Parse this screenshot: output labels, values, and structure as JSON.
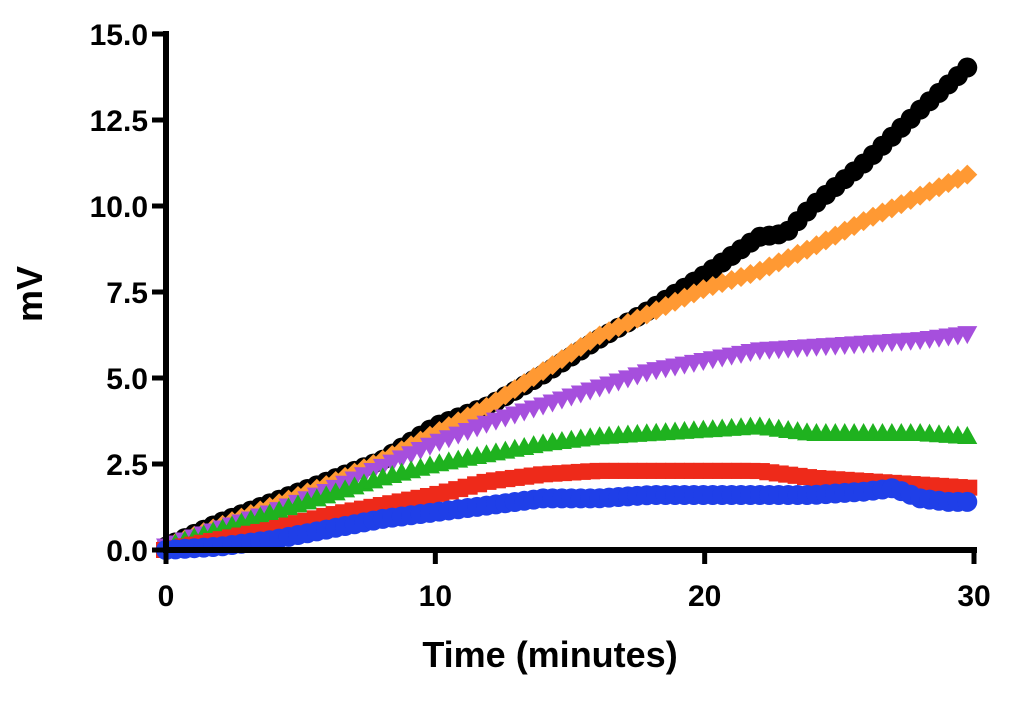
{
  "chart_data": {
    "type": "scatter",
    "title": "",
    "xlabel": "Time (minutes)",
    "ylabel": "mV",
    "xlim": [
      0,
      30
    ],
    "ylim": [
      0,
      15
    ],
    "x_ticks": [
      0,
      10,
      20,
      30
    ],
    "x_tick_labels": [
      "0",
      "10",
      "20",
      "30"
    ],
    "y_ticks": [
      0,
      2.5,
      5,
      7.5,
      10,
      12.5,
      15
    ],
    "y_tick_labels": [
      "0.0",
      "2.5",
      "5.0",
      "7.5",
      "10.0",
      "12.5",
      "15.0"
    ],
    "grid": false,
    "legend": "none",
    "series": [
      {
        "marker": "circle",
        "color": "#000000",
        "x": [
          0,
          2,
          4,
          6,
          8,
          10,
          12,
          14,
          16,
          18,
          20,
          22,
          23,
          24,
          26,
          28,
          30
        ],
        "y": [
          0.1,
          0.8,
          1.4,
          2.0,
          2.6,
          3.6,
          4.2,
          5.1,
          6.1,
          7.0,
          8.0,
          9.1,
          9.2,
          10.0,
          11.3,
          12.8,
          14.2
        ]
      },
      {
        "marker": "diamond",
        "color": "#ff9933",
        "x": [
          0,
          2,
          4,
          6,
          8,
          10,
          12,
          14,
          16,
          18,
          20,
          22,
          24,
          26,
          28,
          30
        ],
        "y": [
          0.1,
          0.7,
          1.3,
          1.9,
          2.6,
          3.4,
          4.2,
          5.2,
          6.2,
          6.9,
          7.6,
          8.1,
          8.8,
          9.6,
          10.3,
          11.0
        ]
      },
      {
        "marker": "triangle-down",
        "color": "#a64fdd",
        "x": [
          0,
          2,
          4,
          6,
          8,
          10,
          12,
          14,
          16,
          18,
          20,
          22,
          24,
          26,
          28,
          30
        ],
        "y": [
          0.1,
          0.6,
          1.1,
          1.7,
          2.4,
          3.1,
          3.7,
          4.2,
          4.7,
          5.2,
          5.5,
          5.8,
          5.9,
          6.0,
          6.1,
          6.3
        ]
      },
      {
        "marker": "triangle-up",
        "color": "#1fb21f",
        "x": [
          0,
          2,
          4,
          6,
          8,
          10,
          12,
          14,
          16,
          18,
          20,
          22,
          24,
          26,
          28,
          30
        ],
        "y": [
          0.1,
          0.6,
          1.1,
          1.6,
          2.1,
          2.5,
          2.8,
          3.1,
          3.3,
          3.4,
          3.5,
          3.6,
          3.4,
          3.4,
          3.4,
          3.3
        ]
      },
      {
        "marker": "square",
        "color": "#ee2a1a",
        "x": [
          0,
          2,
          4,
          6,
          8,
          10,
          12,
          14,
          16,
          18,
          20,
          22,
          24,
          26,
          28,
          30
        ],
        "y": [
          0.0,
          0.3,
          0.6,
          1.0,
          1.3,
          1.6,
          2.0,
          2.2,
          2.3,
          2.3,
          2.3,
          2.3,
          2.1,
          2.0,
          1.9,
          1.8
        ]
      },
      {
        "marker": "circle",
        "color": "#1f3fe8",
        "x": [
          0,
          2,
          4,
          6,
          8,
          10,
          12,
          14,
          16,
          18,
          20,
          22,
          24,
          26,
          27,
          28,
          29,
          30
        ],
        "y": [
          0.0,
          0.1,
          0.3,
          0.6,
          0.9,
          1.1,
          1.3,
          1.5,
          1.5,
          1.6,
          1.6,
          1.6,
          1.6,
          1.7,
          1.8,
          1.5,
          1.4,
          1.4
        ]
      }
    ]
  }
}
